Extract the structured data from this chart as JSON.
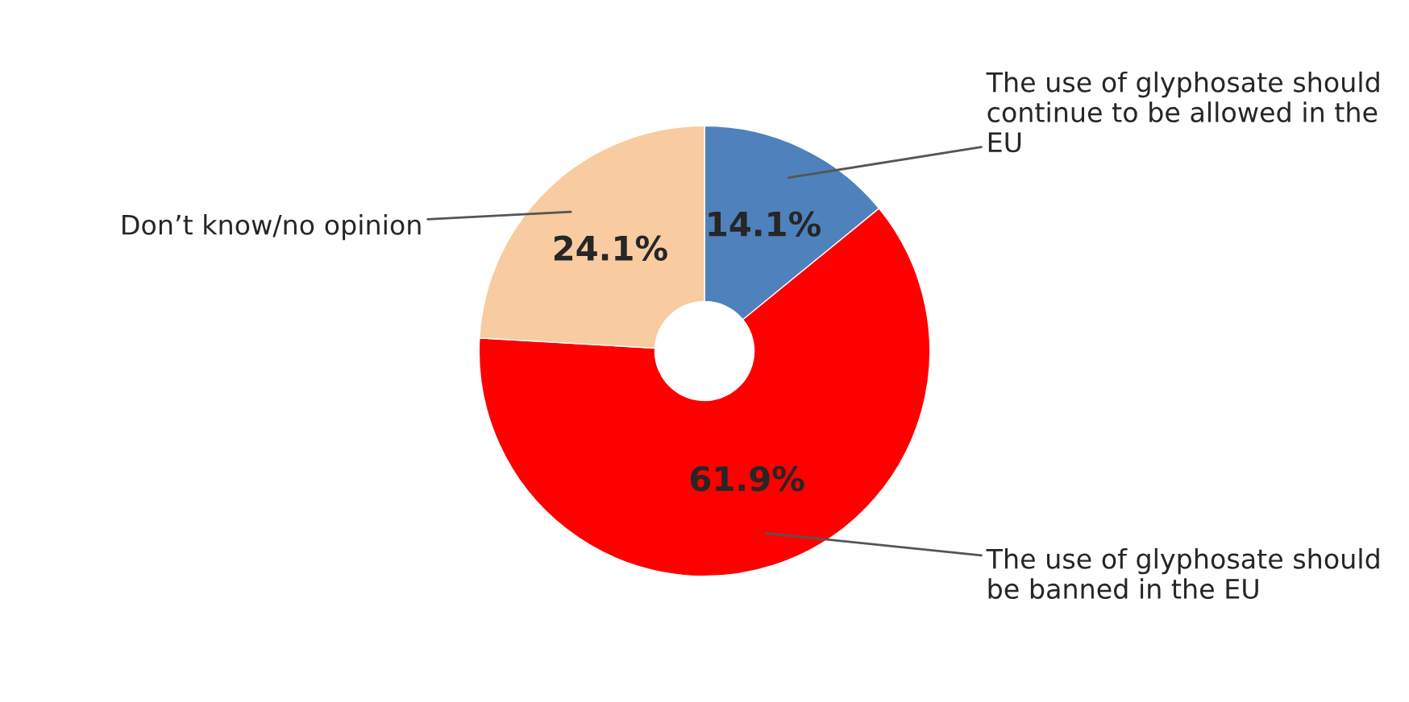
{
  "chart_data": {
    "type": "donut",
    "categories": [
      "The use of glyphosate should continue to be allowed in the EU",
      "The use of glyphosate should be banned in the EU",
      "Don’t know/no opinion"
    ],
    "values": [
      14.1,
      61.9,
      24.1
    ],
    "colors": [
      "#4f81bd",
      "#ff0000",
      "#f8cba0"
    ],
    "value_labels": [
      "14.1%",
      "61.9%",
      "24.1%"
    ],
    "legend": false
  }
}
